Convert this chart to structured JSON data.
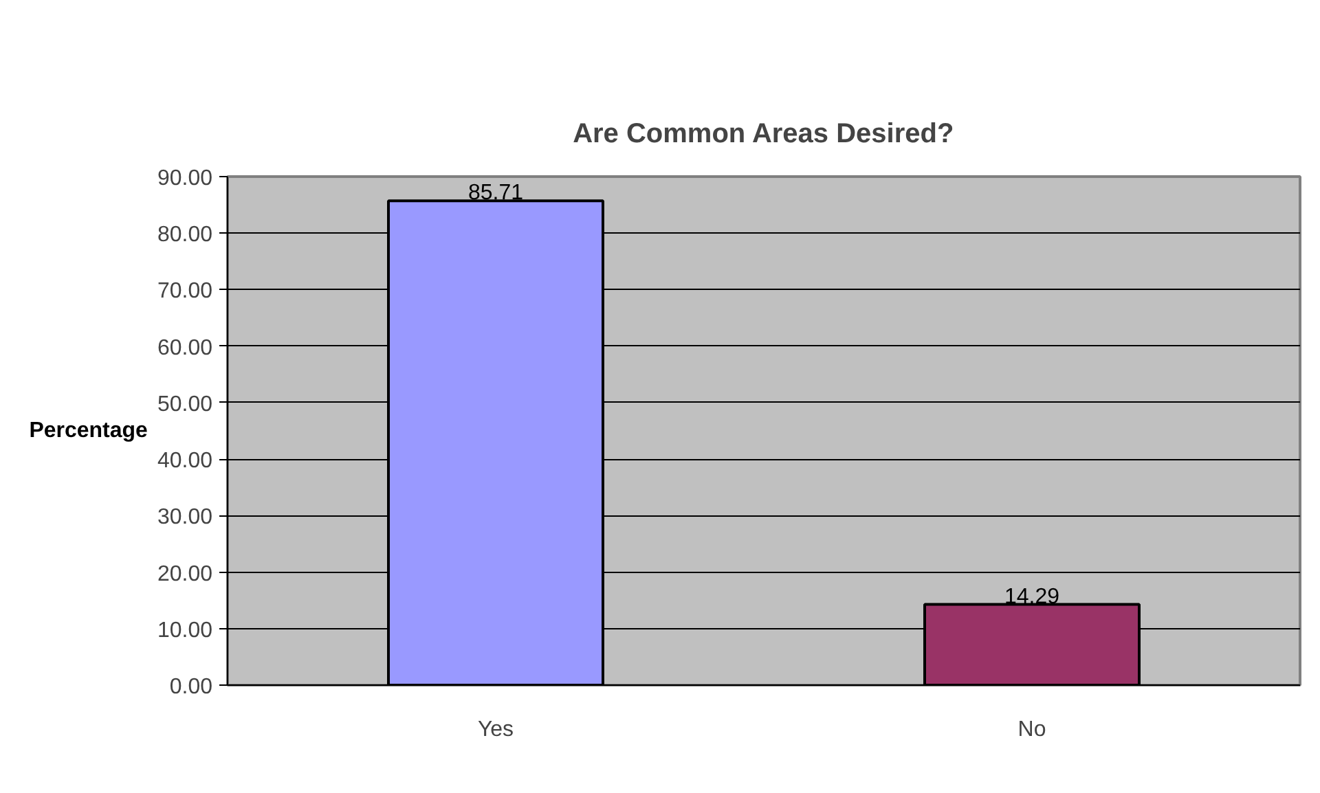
{
  "chart_data": {
    "type": "bar",
    "title": "Are Common Areas Desired?",
    "ylabel": "Percentage",
    "categories": [
      "Yes",
      "No"
    ],
    "values": [
      85.71,
      14.29
    ],
    "colors": [
      "#9999ff",
      "#993366"
    ],
    "ylim": [
      0,
      90
    ],
    "yticks": [
      {
        "value": 0,
        "label": "0.00"
      },
      {
        "value": 10,
        "label": "10.00"
      },
      {
        "value": 20,
        "label": "20.00"
      },
      {
        "value": 30,
        "label": "30.00"
      },
      {
        "value": 40,
        "label": "40.00"
      },
      {
        "value": 50,
        "label": "50.00"
      },
      {
        "value": 60,
        "label": "60.00"
      },
      {
        "value": 70,
        "label": "70.00"
      },
      {
        "value": 80,
        "label": "80.00"
      },
      {
        "value": 90,
        "label": "90.00"
      }
    ],
    "grid": "y",
    "data_labels": true
  }
}
